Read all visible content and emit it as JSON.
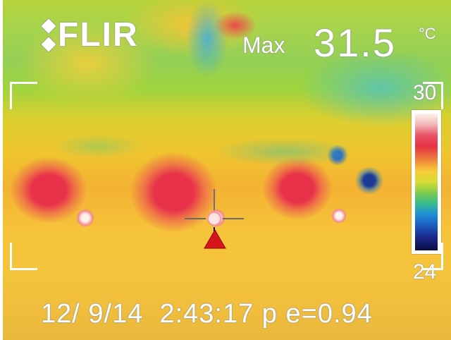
{
  "brand": {
    "logo_text": "FLIR",
    "logo_icon": "flir-diamond-icon"
  },
  "measurement": {
    "label": "Max",
    "value": "31.5",
    "unit": "°C"
  },
  "scale": {
    "max": "30",
    "min": "24"
  },
  "footer": {
    "date": "12/ 9/14",
    "time": "2:43:17 p",
    "emissivity": "e=0.94"
  },
  "colors": {
    "hot": "#e6354a",
    "warm": "#f3b233",
    "cool": "#93cf55",
    "cold": "#1b2a8f",
    "overlay_text": "#ffffff",
    "marker": "#d6141b"
  }
}
